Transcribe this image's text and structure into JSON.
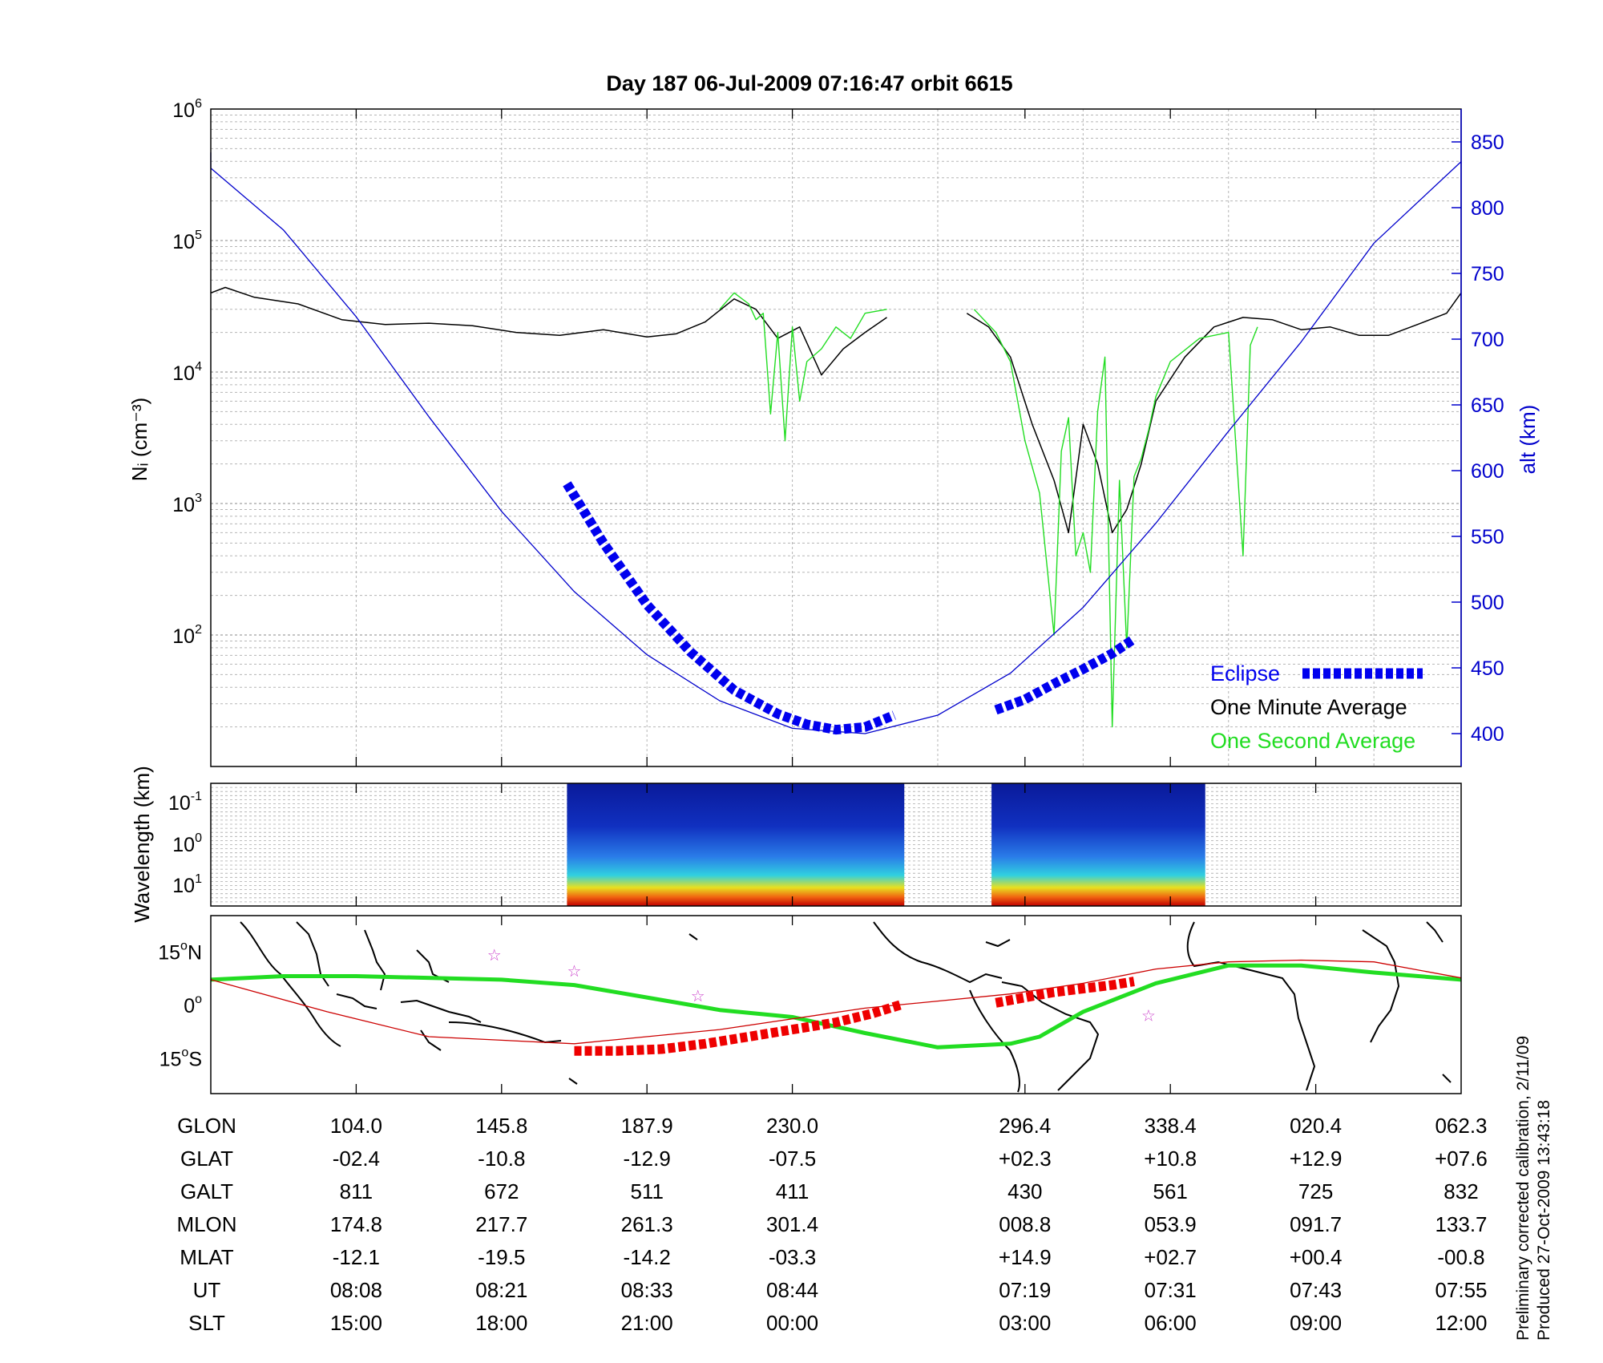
{
  "title": "Day 187  06-Jul-2009 07:16:47    orbit 6615",
  "colors": {
    "altitude": "#0000cc",
    "one_minute": "#000000",
    "one_second": "#22dd22",
    "eclipse": "#0000ee",
    "eclipse_ground": "#ee0000",
    "ground_track": "#22dd22",
    "magnetic_equator": "#cc0000",
    "star": "#cc44cc"
  },
  "chart_data": [
    {
      "type": "line",
      "panel": "density",
      "ylabel": "Nᵢ (cm⁻³)",
      "y2label": "alt (km)",
      "y_scale": "log",
      "ylim": [
        10,
        1000000
      ],
      "y_ticks": [
        {
          "value": 100,
          "base": "10",
          "exp": "2"
        },
        {
          "value": 1000,
          "base": "10",
          "exp": "3"
        },
        {
          "value": 10000,
          "base": "10",
          "exp": "4"
        },
        {
          "value": 100000,
          "base": "10",
          "exp": "5"
        },
        {
          "value": 1000000,
          "base": "10",
          "exp": "6"
        }
      ],
      "y2lim": [
        375,
        875
      ],
      "y2_ticks": [
        "400",
        "450",
        "500",
        "550",
        "600",
        "650",
        "700",
        "750",
        "800",
        "850"
      ],
      "grid": true,
      "legend": {
        "position": "bottom-right",
        "entries": [
          "Eclipse",
          "One Minute Average",
          "One Second Average"
        ]
      },
      "series": [
        {
          "name": "One Minute Average",
          "x": [
            0,
            0.1,
            0.3,
            0.6,
            0.9,
            1.2,
            1.5,
            1.8,
            2.1,
            2.4,
            2.7,
            3.0,
            3.2,
            3.4,
            3.6,
            3.75,
            3.9,
            4.05,
            4.2,
            4.35,
            4.5,
            4.65
          ],
          "y": [
            40000,
            44000,
            37000,
            33000,
            25000,
            23000,
            23500,
            22500,
            20000,
            19000,
            21000,
            18500,
            19500,
            24000,
            36000,
            30000,
            18000,
            22000,
            9500,
            15000,
            20000,
            26000
          ]
        },
        {
          "name": "One Minute Average",
          "x": [
            5.2,
            5.35,
            5.5,
            5.65,
            5.8,
            5.9,
            6.0,
            6.1,
            6.2,
            6.3,
            6.4,
            6.5,
            6.7,
            6.9,
            7.1,
            7.3,
            7.5,
            7.7,
            7.9,
            8.1,
            8.3,
            8.5,
            8.6
          ],
          "y": [
            28000,
            22000,
            13000,
            4000,
            1500,
            600,
            4000,
            2000,
            600,
            900,
            2000,
            6000,
            13000,
            22000,
            26000,
            25000,
            21000,
            22000,
            19000,
            19000,
            23000,
            28000,
            40000
          ]
        },
        {
          "name": "One Second Average",
          "x": [
            3.5,
            3.6,
            3.7,
            3.75,
            3.8,
            3.85,
            3.9,
            3.95,
            4.0,
            4.05,
            4.1,
            4.2,
            4.3,
            4.4,
            4.5,
            4.65
          ],
          "y": [
            30000,
            40000,
            33000,
            25000,
            28000,
            4800,
            20000,
            3000,
            22000,
            6000,
            12000,
            15000,
            22000,
            18000,
            28000,
            30000
          ]
        },
        {
          "name": "One Second Average",
          "x": [
            5.25,
            5.4,
            5.5,
            5.6,
            5.7,
            5.8,
            5.85,
            5.9,
            5.95,
            6.0,
            6.05,
            6.1,
            6.15,
            6.2,
            6.25,
            6.3,
            6.35,
            6.4,
            6.45,
            6.5,
            6.6,
            6.8,
            7.0,
            7.1,
            7.15,
            7.2
          ],
          "y": [
            30000,
            20000,
            12000,
            3000,
            1200,
            100,
            2500,
            4500,
            400,
            600,
            300,
            5000,
            13000,
            20,
            1500,
            80,
            1600,
            2200,
            3600,
            6500,
            12000,
            18000,
            20000,
            400,
            16000,
            22000
          ]
        },
        {
          "name": "alt (km)",
          "x": [
            -0.7,
            0.0,
            0.5,
            1.0,
            1.5,
            2.0,
            2.5,
            3.0,
            3.5,
            4.0,
            4.5,
            5.0,
            5.5,
            6.0,
            6.5,
            7.0,
            7.5,
            8.0,
            8.6
          ],
          "y": [
            842,
            830,
            783,
            717,
            641,
            569,
            508,
            460,
            425,
            404,
            400,
            414,
            446,
            496,
            560,
            630,
            698,
            773,
            835
          ]
        },
        {
          "name": "Eclipse",
          "x": [
            2.45,
            2.7,
            3.0,
            3.3,
            3.6,
            3.9,
            4.1,
            4.3,
            4.5,
            4.7
          ],
          "y": [
            590,
            545,
            498,
            462,
            433,
            415,
            407,
            403,
            405,
            414
          ]
        },
        {
          "name": "Eclipse",
          "x": [
            5.4,
            5.6,
            5.8,
            6.0,
            6.2,
            6.35
          ],
          "y": [
            418,
            426,
            438,
            449,
            461,
            472
          ]
        }
      ]
    },
    {
      "type": "heatmap",
      "panel": "spectrogram",
      "ylabel": "Wavelength (km)",
      "y_ticks": [
        {
          "base": "10",
          "exp": "-1"
        },
        {
          "base": "10",
          "exp": "0"
        },
        {
          "base": "10",
          "exp": "1"
        }
      ],
      "segments": [
        [
          2.45,
          4.77
        ],
        [
          5.37,
          6.84
        ]
      ]
    },
    {
      "type": "line",
      "panel": "map",
      "ylim": [
        -25,
        25
      ],
      "y_ticks": [
        {
          "value": 15,
          "num": "15",
          "unit": "N"
        },
        {
          "value": 0,
          "num": "0",
          "unit": ""
        },
        {
          "value": -15,
          "num": "15",
          "unit": "S"
        }
      ],
      "series": [
        {
          "name": "Ground track",
          "x": [
            0.0,
            0.5,
            1.0,
            2.0,
            2.5,
            3.0,
            3.5,
            4.0,
            4.5,
            5.0,
            5.5,
            5.7,
            6.0,
            6.5,
            7.0,
            7.5,
            8.0,
            8.6
          ],
          "y": [
            7,
            8,
            8,
            7,
            5.5,
            2,
            -1.5,
            -3.5,
            -8,
            -12,
            -11,
            -9,
            -2,
            6,
            11,
            11,
            9,
            7
          ]
        },
        {
          "name": "Magnetic equator",
          "x": [
            0.0,
            0.8,
            1.5,
            2.5,
            3.5,
            4.5,
            5.0,
            5.5,
            6.0,
            6.5,
            7.0,
            7.5,
            8.0,
            8.6
          ],
          "y": [
            7,
            -2,
            -9,
            -11,
            -7,
            -1,
            1,
            3,
            6,
            10,
            12,
            12.5,
            12,
            7.5
          ]
        },
        {
          "name": "Eclipse",
          "x": [
            2.5,
            2.8,
            3.1,
            3.4,
            3.7,
            4.0,
            4.3,
            4.55,
            4.75
          ],
          "y": [
            -13,
            -13,
            -12.5,
            -11,
            -9,
            -7,
            -5,
            -2.5,
            0
          ]
        },
        {
          "name": "Eclipse",
          "x": [
            5.4,
            5.6,
            5.8,
            6.0,
            6.2,
            6.35
          ],
          "y": [
            0.5,
            2,
            3.5,
            4.5,
            5.5,
            6.5
          ]
        }
      ],
      "stars": [
        [
          1.95,
          14
        ],
        [
          2.5,
          9.5
        ],
        [
          3.35,
          2.5
        ],
        [
          6.45,
          -3
        ]
      ]
    }
  ],
  "table": {
    "row_labels": [
      "GLON",
      "GLAT",
      "GALT",
      "MLON",
      "MLAT",
      "UT",
      "SLT"
    ],
    "columns": [
      {
        "x": 1,
        "values": [
          "104.0",
          "-02.4",
          "811",
          "174.8",
          "-12.1",
          "08:08",
          "15:00"
        ]
      },
      {
        "x": 2,
        "values": [
          "145.8",
          "-10.8",
          "672",
          "217.7",
          "-19.5",
          "08:21",
          "18:00"
        ]
      },
      {
        "x": 3,
        "values": [
          "187.9",
          "-12.9",
          "511",
          "261.3",
          "-14.2",
          "08:33",
          "21:00"
        ]
      },
      {
        "x": 4,
        "values": [
          "230.0",
          "-07.5",
          "411",
          "301.4",
          "-03.3",
          "08:44",
          "00:00"
        ]
      },
      {
        "x": 5.6,
        "values": [
          "296.4",
          "+02.3",
          "430",
          "008.8",
          "+14.9",
          "07:19",
          "03:00"
        ]
      },
      {
        "x": 6.6,
        "values": [
          "338.4",
          "+10.8",
          "561",
          "053.9",
          "+02.7",
          "07:31",
          "06:00"
        ]
      },
      {
        "x": 7.6,
        "values": [
          "020.4",
          "+12.9",
          "725",
          "091.7",
          "+00.4",
          "07:43",
          "09:00"
        ]
      },
      {
        "x": 8.6,
        "values": [
          "062.3",
          "+07.6",
          "832",
          "133.7",
          "-00.8",
          "07:55",
          "12:00"
        ]
      }
    ]
  },
  "footer": {
    "line1": "Preliminary corrected calibration, 2/11/09",
    "line2": "Produced 27-Oct-2009 13:43:18"
  }
}
